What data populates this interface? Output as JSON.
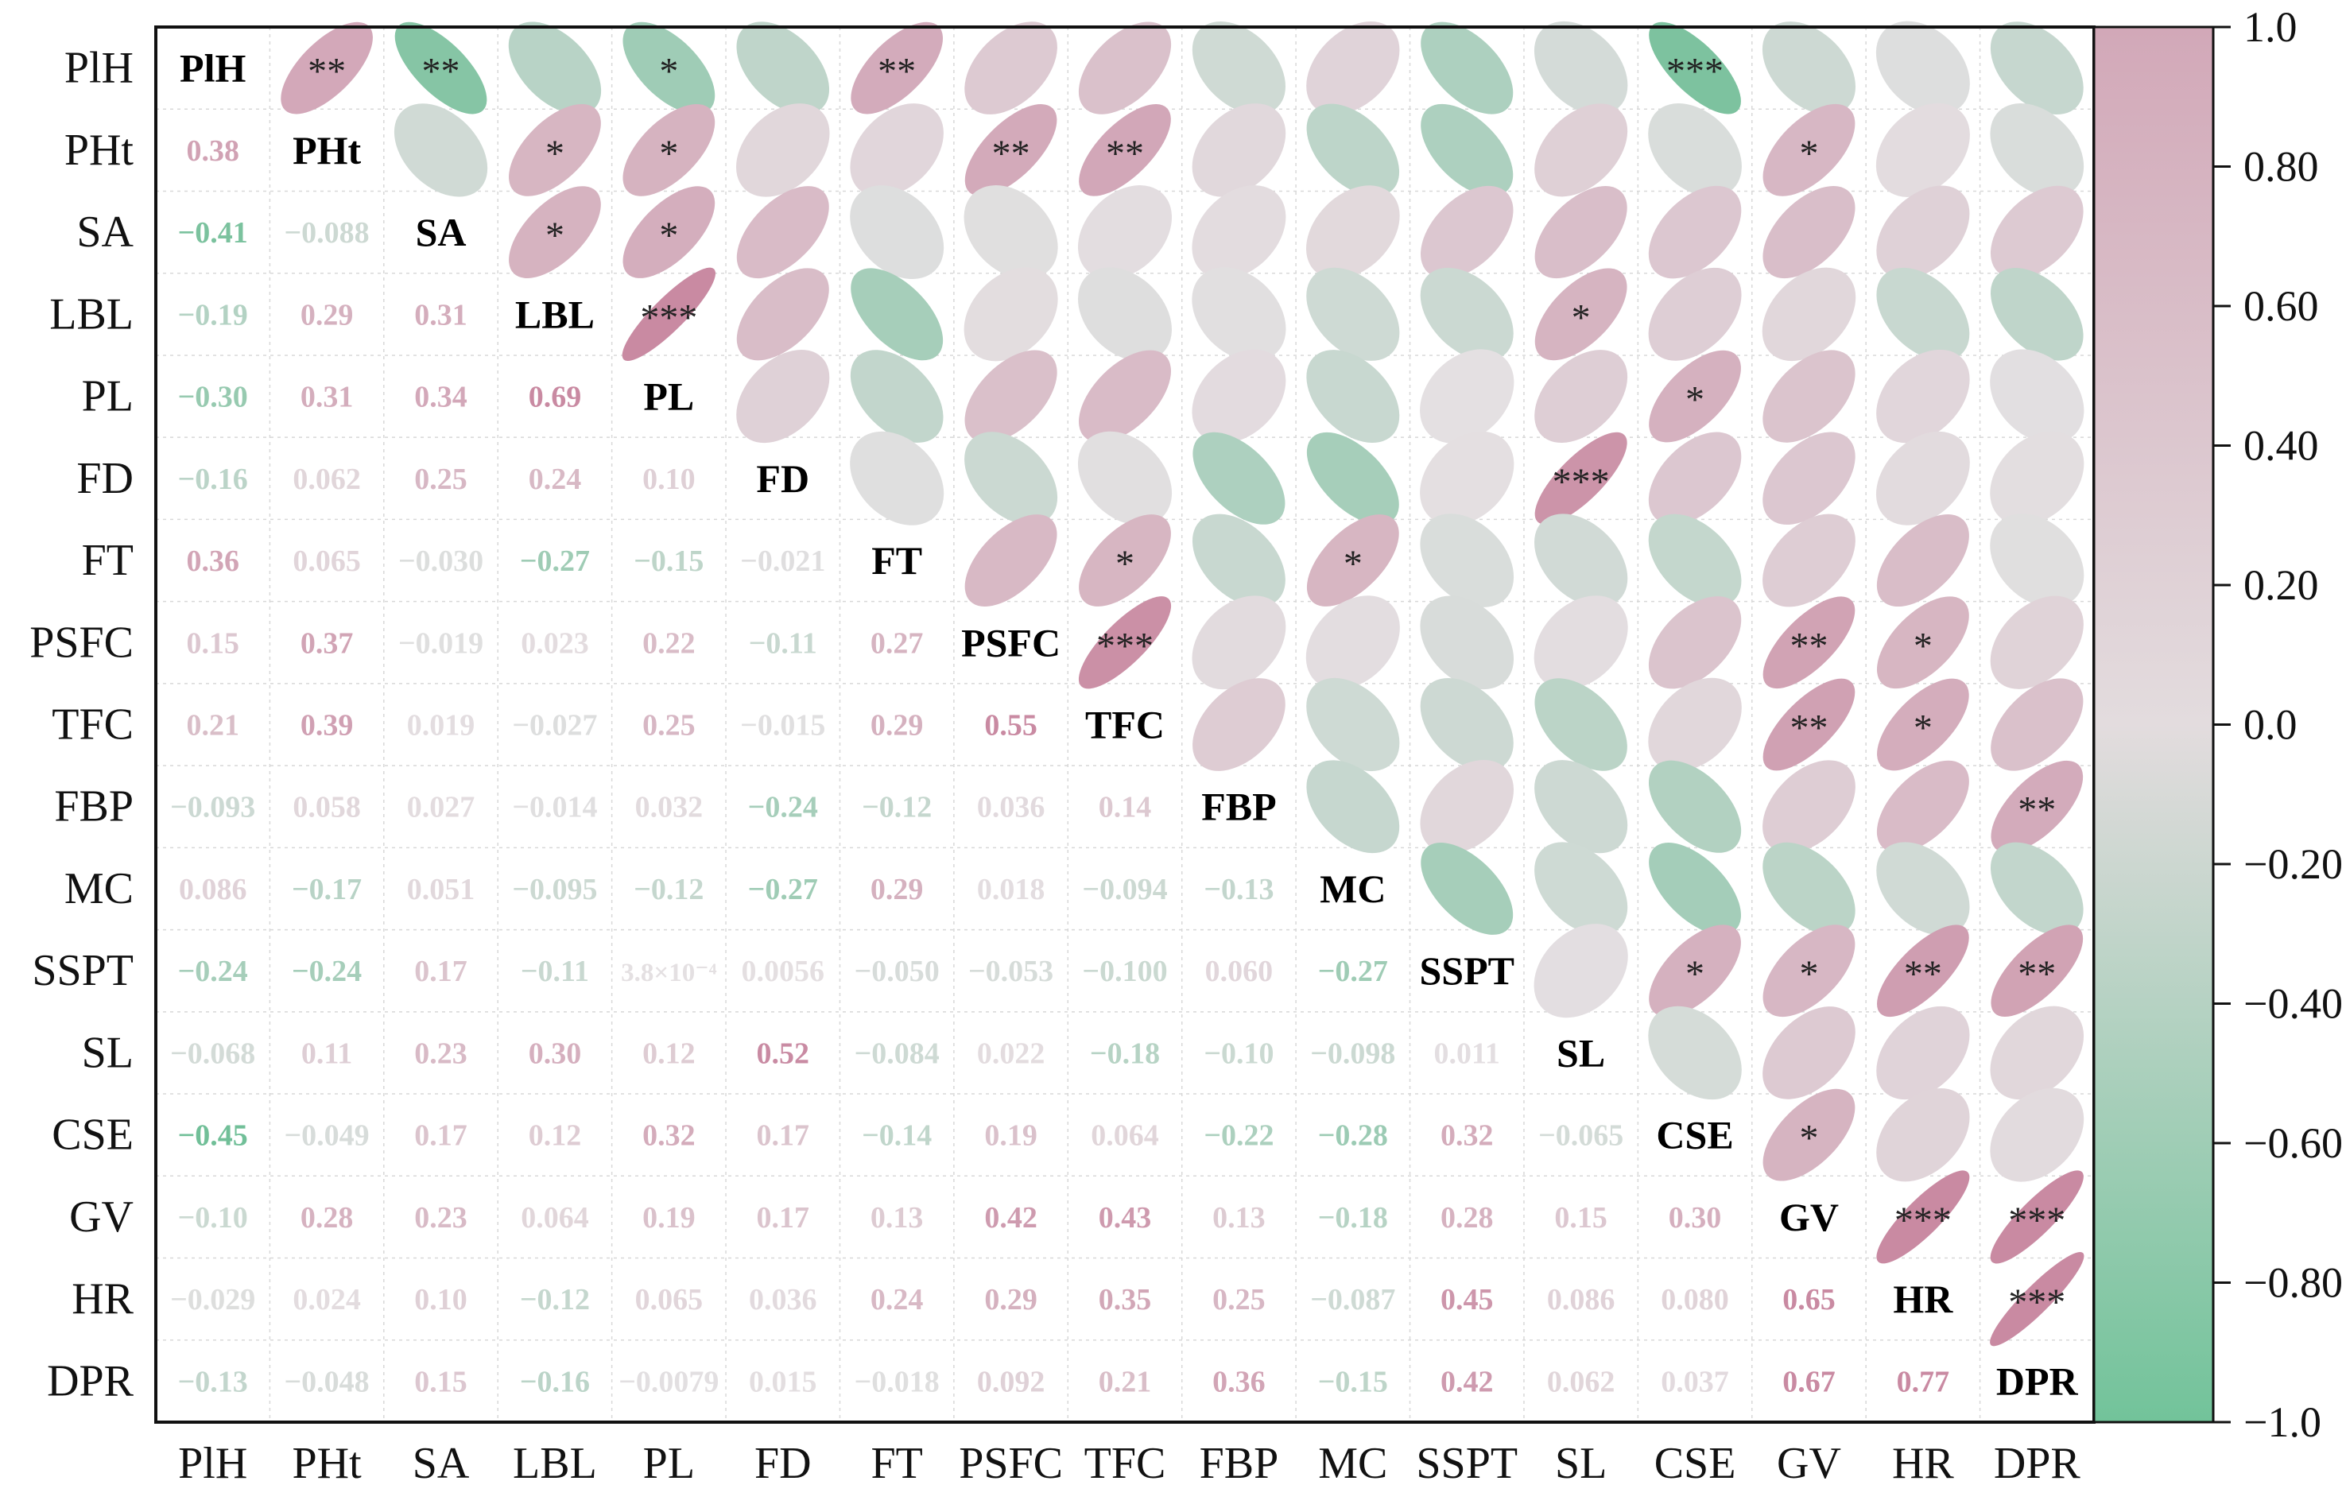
{
  "chart_data": {
    "type": "heatmap",
    "subtype": "correlation-matrix-mixed",
    "variables": [
      "PlH",
      "PHt",
      "SA",
      "LBL",
      "PL",
      "FD",
      "FT",
      "PSFC",
      "TFC",
      "FBP",
      "MC",
      "SSPT",
      "SL",
      "CSE",
      "GV",
      "HR",
      "DPR"
    ],
    "lower_triangle": "correlation coefficient as number text",
    "upper_triangle": "ellipse shaped and coloured by correlation, with significance stars",
    "diagonal": "variable name in bold",
    "matrix_labels": [
      [
        "PlH",
        "",
        "",
        "",
        "",
        "",
        "",
        "",
        "",
        "",
        "",
        "",
        "",
        "",
        "",
        "",
        ""
      ],
      [
        "0.38",
        "PHt",
        "",
        "",
        "",
        "",
        "",
        "",
        "",
        "",
        "",
        "",
        "",
        "",
        "",
        "",
        ""
      ],
      [
        "−0.41",
        "−0.088",
        "SA",
        "",
        "",
        "",
        "",
        "",
        "",
        "",
        "",
        "",
        "",
        "",
        "",
        "",
        ""
      ],
      [
        "−0.19",
        "0.29",
        "0.31",
        "LBL",
        "",
        "",
        "",
        "",
        "",
        "",
        "",
        "",
        "",
        "",
        "",
        "",
        ""
      ],
      [
        "−0.30",
        "0.31",
        "0.34",
        "0.69",
        "PL",
        "",
        "",
        "",
        "",
        "",
        "",
        "",
        "",
        "",
        "",
        "",
        ""
      ],
      [
        "−0.16",
        "0.062",
        "0.25",
        "0.24",
        "0.10",
        "FD",
        "",
        "",
        "",
        "",
        "",
        "",
        "",
        "",
        "",
        "",
        ""
      ],
      [
        "0.36",
        "0.065",
        "−0.030",
        "−0.27",
        "−0.15",
        "−0.021",
        "FT",
        "",
        "",
        "",
        "",
        "",
        "",
        "",
        "",
        "",
        ""
      ],
      [
        "0.15",
        "0.37",
        "−0.019",
        "0.023",
        "0.22",
        "−0.11",
        "0.27",
        "PSFC",
        "",
        "",
        "",
        "",
        "",
        "",
        "",
        "",
        ""
      ],
      [
        "0.21",
        "0.39",
        "0.019",
        "−0.027",
        "0.25",
        "−0.015",
        "0.29",
        "0.55",
        "TFC",
        "",
        "",
        "",
        "",
        "",
        "",
        "",
        ""
      ],
      [
        "−0.093",
        "0.058",
        "0.027",
        "−0.014",
        "0.032",
        "−0.24",
        "−0.12",
        "0.036",
        "0.14",
        "FBP",
        "",
        "",
        "",
        "",
        "",
        "",
        ""
      ],
      [
        "0.086",
        "−0.17",
        "0.051",
        "−0.095",
        "−0.12",
        "−0.27",
        "0.29",
        "0.018",
        "−0.094",
        "−0.13",
        "MC",
        "",
        "",
        "",
        "",
        "",
        ""
      ],
      [
        "−0.24",
        "−0.24",
        "0.17",
        "−0.11",
        "3.8×10⁻⁴",
        "0.0056",
        "−0.050",
        "−0.053",
        "−0.100",
        "0.060",
        "−0.27",
        "SSPT",
        "",
        "",
        "",
        "",
        ""
      ],
      [
        "−0.068",
        "0.11",
        "0.23",
        "0.30",
        "0.12",
        "0.52",
        "−0.084",
        "0.022",
        "−0.18",
        "−0.10",
        "−0.098",
        "0.011",
        "SL",
        "",
        "",
        "",
        ""
      ],
      [
        "−0.45",
        "−0.049",
        "0.17",
        "0.12",
        "0.32",
        "0.17",
        "−0.14",
        "0.19",
        "0.064",
        "−0.22",
        "−0.28",
        "0.32",
        "−0.065",
        "CSE",
        "",
        "",
        ""
      ],
      [
        "−0.10",
        "0.28",
        "0.23",
        "0.064",
        "0.19",
        "0.17",
        "0.13",
        "0.42",
        "0.43",
        "0.13",
        "−0.18",
        "0.28",
        "0.15",
        "0.30",
        "GV",
        "",
        ""
      ],
      [
        "−0.029",
        "0.024",
        "0.10",
        "−0.12",
        "0.065",
        "0.036",
        "0.24",
        "0.29",
        "0.35",
        "0.25",
        "−0.087",
        "0.45",
        "0.086",
        "0.080",
        "0.65",
        "HR",
        ""
      ],
      [
        "−0.13",
        "−0.048",
        "0.15",
        "−0.16",
        "−0.0079",
        "0.015",
        "−0.018",
        "0.092",
        "0.21",
        "0.36",
        "−0.15",
        "0.42",
        "0.062",
        "0.037",
        "0.67",
        "0.77",
        "DPR"
      ]
    ],
    "significance": [
      [
        "",
        "**",
        "**",
        "",
        "*",
        "",
        "**",
        "",
        "",
        "",
        "",
        "",
        "",
        "***",
        "",
        "",
        ""
      ],
      [
        "",
        "",
        "",
        "*",
        "*",
        "",
        "",
        "**",
        "**",
        "",
        "",
        "",
        "",
        "",
        "*",
        "",
        ""
      ],
      [
        "",
        "",
        "",
        "*",
        "*",
        "",
        "",
        "",
        "",
        "",
        "",
        "",
        "",
        "",
        "",
        "",
        ""
      ],
      [
        "",
        "",
        "",
        "",
        "***",
        "",
        "",
        "",
        "",
        "",
        "",
        "",
        "*",
        "",
        "",
        "",
        ""
      ],
      [
        "",
        "",
        "",
        "",
        "",
        "",
        "",
        "",
        "",
        "",
        "",
        "",
        "",
        "*",
        "",
        "",
        ""
      ],
      [
        "",
        "",
        "",
        "",
        "",
        "",
        "",
        "",
        "",
        "",
        "",
        "",
        "***",
        "",
        "",
        "",
        ""
      ],
      [
        "",
        "",
        "",
        "",
        "",
        "",
        "",
        "",
        "*",
        "",
        "*",
        "",
        "",
        "",
        "",
        "",
        ""
      ],
      [
        "",
        "",
        "",
        "",
        "",
        "",
        "",
        "",
        "***",
        "",
        "",
        "",
        "",
        "",
        "**",
        "*",
        ""
      ],
      [
        "",
        "",
        "",
        "",
        "",
        "",
        "",
        "",
        "",
        "",
        "",
        "",
        "",
        "",
        "**",
        "*",
        ""
      ],
      [
        "",
        "",
        "",
        "",
        "",
        "",
        "",
        "",
        "",
        "",
        "",
        "",
        "",
        "",
        "",
        "",
        "**"
      ],
      [
        "",
        "",
        "",
        "",
        "",
        "",
        "",
        "",
        "",
        "",
        "",
        "",
        "",
        "",
        "",
        "",
        ""
      ],
      [
        "",
        "",
        "",
        "",
        "",
        "",
        "",
        "",
        "",
        "",
        "",
        "",
        "",
        "*",
        "*",
        "**",
        "**"
      ],
      [
        "",
        "",
        "",
        "",
        "",
        "",
        "",
        "",
        "",
        "",
        "",
        "",
        "",
        "",
        "",
        "",
        ""
      ],
      [
        "",
        "",
        "",
        "",
        "",
        "",
        "",
        "",
        "",
        "",
        "",
        "",
        "",
        "",
        "*",
        "",
        ""
      ],
      [
        "",
        "",
        "",
        "",
        "",
        "",
        "",
        "",
        "",
        "",
        "",
        "",
        "",
        "",
        "",
        "***",
        "***"
      ],
      [
        "",
        "",
        "",
        "",
        "",
        "",
        "",
        "",
        "",
        "",
        "",
        "",
        "",
        "",
        "",
        "",
        "***"
      ],
      [
        "",
        "",
        "",
        "",
        "",
        "",
        "",
        "",
        "",
        "",
        "",
        "",
        "",
        "",
        "",
        "",
        ""
      ]
    ],
    "colorbar": {
      "ticks": [
        "1.0",
        "0.80",
        "0.60",
        "0.40",
        "0.20",
        "0.0",
        "−0.20",
        "−0.40",
        "−0.60",
        "−0.80",
        "−1.0"
      ],
      "range": [
        -1,
        1
      ],
      "positive_color": "#C98AA2",
      "neutral_color": "#D6D6D6",
      "negative_color": "#5DB98B"
    },
    "grid": true
  }
}
